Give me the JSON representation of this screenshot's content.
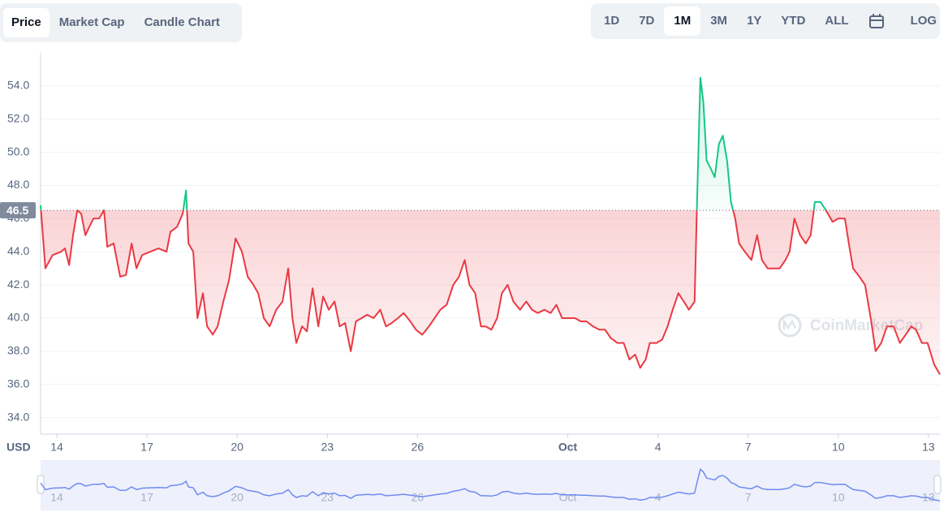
{
  "toolbar": {
    "tabs": [
      "Price",
      "Market Cap",
      "Candle Chart"
    ],
    "active_tab": 0,
    "ranges": [
      "1D",
      "7D",
      "1M",
      "3M",
      "1Y",
      "YTD",
      "ALL"
    ],
    "active_range": 2,
    "log_button": "LOG"
  },
  "watermark": "CoinMarketCap",
  "chart_data": {
    "type": "line",
    "ylabel": "USD",
    "x": [
      13.46,
      13.62,
      13.86,
      14.14,
      14.27,
      14.41,
      14.54,
      14.68,
      14.81,
      14.95,
      15.08,
      15.22,
      15.41,
      15.57,
      15.68,
      15.89,
      16.11,
      16.3,
      16.49,
      16.65,
      16.84,
      17.11,
      17.38,
      17.65,
      17.78,
      18.0,
      18.19,
      18.3,
      18.38,
      18.54,
      18.68,
      18.86,
      19.0,
      19.19,
      19.35,
      19.54,
      19.73,
      19.95,
      20.16,
      20.35,
      20.54,
      20.7,
      20.89,
      21.08,
      21.3,
      21.51,
      21.7,
      21.84,
      21.97,
      22.16,
      22.32,
      22.51,
      22.7,
      22.86,
      23.05,
      23.24,
      23.41,
      23.59,
      23.78,
      23.95,
      24.14,
      24.32,
      24.54,
      24.76,
      24.95,
      25.14,
      25.35,
      25.54,
      25.76,
      25.95,
      26.16,
      26.38,
      26.57,
      26.76,
      26.97,
      27.19,
      27.38,
      27.57,
      27.73,
      27.92,
      28.11,
      28.27,
      28.46,
      28.65,
      28.81,
      29.0,
      29.19,
      29.41,
      29.62,
      29.81,
      30.0,
      30.22,
      30.43,
      30.62,
      30.81,
      31.03,
      31.24,
      31.43,
      31.62,
      31.84,
      32.05,
      32.24,
      32.43,
      32.65,
      32.86,
      33.05,
      33.24,
      33.41,
      33.59,
      33.73,
      33.95,
      34.14,
      34.32,
      34.49,
      34.68,
      34.86,
      35.03,
      35.22,
      35.3,
      35.41,
      35.51,
      35.62,
      35.76,
      35.89,
      36.03,
      36.16,
      36.3,
      36.43,
      36.57,
      36.7,
      36.89,
      37.11,
      37.3,
      37.46,
      37.65,
      37.84,
      38.05,
      38.24,
      38.38,
      38.54,
      38.73,
      38.92,
      39.08,
      39.22,
      39.41,
      39.59,
      39.81,
      40.0,
      40.22,
      40.35,
      40.49,
      40.7,
      40.89,
      41.08,
      41.24,
      41.43,
      41.62,
      41.84,
      42.05,
      42.24,
      42.43,
      42.59,
      42.78,
      42.97,
      43.19,
      43.38
    ],
    "series": [
      {
        "name": "Price",
        "color": "#ea3943",
        "up_color": "#16c784",
        "values": [
          46.8,
          43.0,
          43.8,
          44.0,
          44.2,
          43.2,
          45.0,
          46.5,
          46.3,
          45.0,
          45.5,
          46.0,
          46.0,
          46.5,
          44.3,
          44.5,
          42.5,
          42.6,
          44.5,
          43.0,
          43.8,
          44.0,
          44.2,
          44.0,
          45.2,
          45.5,
          46.3,
          47.7,
          44.5,
          44.0,
          40.0,
          41.5,
          39.5,
          39.0,
          39.5,
          41.0,
          42.3,
          44.8,
          44.0,
          42.5,
          42.0,
          41.5,
          40.0,
          39.5,
          40.5,
          41.0,
          43.0,
          40.0,
          38.5,
          39.5,
          39.2,
          41.8,
          39.5,
          41.3,
          40.5,
          41.0,
          39.5,
          39.7,
          38.0,
          39.8,
          40.0,
          40.2,
          40.0,
          40.5,
          39.5,
          39.7,
          40.0,
          40.3,
          39.8,
          39.3,
          39.0,
          39.5,
          40.0,
          40.5,
          40.8,
          42.0,
          42.5,
          43.5,
          42.0,
          41.5,
          39.5,
          39.5,
          39.3,
          40.0,
          41.5,
          42.0,
          41.0,
          40.5,
          41.0,
          40.5,
          40.3,
          40.5,
          40.3,
          40.8,
          40.0,
          40.0,
          40.0,
          39.8,
          39.8,
          39.5,
          39.3,
          39.3,
          38.8,
          38.5,
          38.5,
          37.5,
          37.8,
          37.0,
          37.5,
          38.5,
          38.5,
          38.7,
          39.5,
          40.5,
          41.5,
          41.0,
          40.5,
          41.0,
          47.0,
          54.5,
          53.0,
          49.5,
          49.0,
          48.5,
          50.5,
          51.0,
          49.5,
          47.0,
          46.0,
          44.5,
          44.0,
          43.5,
          45.0,
          43.5,
          43.0,
          43.0,
          43.0,
          43.5,
          44.0,
          46.0,
          45.0,
          44.5,
          45.0,
          47.0,
          47.0,
          46.5,
          45.8,
          46.0,
          46.0,
          44.5,
          43.0,
          42.5,
          42.0,
          40.0,
          38.0,
          38.5,
          39.5,
          39.5,
          38.5,
          39.0,
          39.5,
          39.3,
          38.5,
          38.5,
          37.2,
          36.6
        ]
      }
    ],
    "reference": 46.5,
    "navigator_color": "#6f8cf0",
    "xlim": [
      13.46,
      43.38
    ],
    "xticks": [
      14,
      17,
      20,
      23,
      26,
      {
        "value": 31,
        "label": "Oct"
      },
      {
        "value": 34,
        "label": "4"
      },
      {
        "value": 37,
        "label": "7"
      },
      {
        "value": 40,
        "label": "10"
      },
      {
        "value": 43,
        "label": "13"
      }
    ],
    "ylim": [
      33,
      56
    ],
    "yticks": [
      {
        "value": 34,
        "label": "34.0"
      },
      {
        "value": 36,
        "label": "36.0"
      },
      {
        "value": 38,
        "label": "38.0"
      },
      {
        "value": 40,
        "label": "40.0"
      },
      {
        "value": 42,
        "label": "42.0"
      },
      {
        "value": 44,
        "label": "44.0"
      },
      {
        "value": 46,
        "label": "46.0"
      },
      {
        "value": 48,
        "label": "48.0"
      },
      {
        "value": 50,
        "label": "50.0"
      },
      {
        "value": 52,
        "label": "52.0"
      },
      {
        "value": 54,
        "label": "54.0"
      }
    ],
    "grid": true
  }
}
